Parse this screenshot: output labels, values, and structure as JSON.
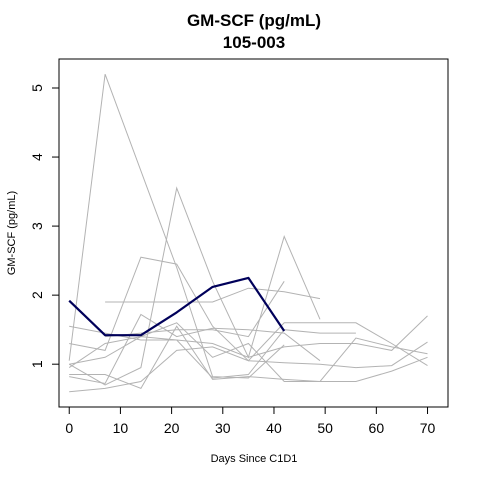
{
  "chart_data": {
    "type": "line",
    "title": "GM-SCF (pg/mL)",
    "subtitle": "105-003",
    "xlabel": "Days Since C1D1",
    "ylabel": "GM-SCF (pg/mL)",
    "xlim": [
      -2,
      74
    ],
    "ylim": [
      0.38,
      5.42
    ],
    "xticks": [
      0,
      10,
      20,
      30,
      40,
      50,
      60,
      70
    ],
    "yticks": [
      1,
      2,
      3,
      4,
      5
    ],
    "background_color": "#b3b3b3",
    "highlight_color": "#00005a",
    "background_series": [
      {
        "x": [
          0,
          7,
          21,
          28,
          35,
          42
        ],
        "y": [
          1.05,
          5.2,
          2.4,
          0.82,
          0.8,
          1.28
        ]
      },
      {
        "x": [
          0,
          7,
          14,
          21,
          28,
          35,
          42,
          49
        ],
        "y": [
          1.0,
          0.7,
          0.95,
          3.55,
          2.2,
          1.1,
          2.85,
          1.65
        ]
      },
      {
        "x": [
          0,
          7,
          14,
          21,
          28,
          35,
          42,
          49
        ],
        "y": [
          0.82,
          0.72,
          1.72,
          1.4,
          1.52,
          1.5,
          1.45,
          1.05
        ]
      },
      {
        "x": [
          0,
          7,
          14,
          21,
          28,
          35,
          42,
          49,
          56,
          63,
          70
        ],
        "y": [
          0.6,
          0.65,
          0.75,
          1.2,
          1.25,
          1.05,
          1.02,
          1.0,
          0.95,
          0.98,
          1.32
        ]
      },
      {
        "x": [
          0,
          7,
          14,
          21,
          28,
          35,
          42,
          49,
          56,
          63,
          70
        ],
        "y": [
          0.85,
          0.85,
          0.65,
          1.55,
          0.78,
          0.82,
          0.78,
          0.75,
          0.75,
          0.9,
          1.1
        ]
      },
      {
        "x": [
          0,
          7,
          14,
          21,
          28,
          35,
          42,
          49,
          56,
          63,
          70
        ],
        "y": [
          1.55,
          1.45,
          1.35,
          1.35,
          1.3,
          1.1,
          1.25,
          1.3,
          1.3,
          1.2,
          1.7
        ]
      },
      {
        "x": [
          0,
          7,
          14,
          21,
          28,
          35,
          42,
          49,
          56,
          63,
          70
        ],
        "y": [
          1.0,
          1.1,
          1.4,
          1.6,
          1.1,
          1.3,
          0.75,
          0.75,
          1.38,
          1.25,
          1.15
        ]
      },
      {
        "x": [
          0,
          7,
          14,
          21,
          28,
          35,
          42,
          49,
          56,
          63,
          70
        ],
        "y": [
          1.3,
          1.2,
          2.55,
          2.45,
          1.55,
          1.05,
          1.6,
          1.6,
          1.6,
          1.3,
          0.98
        ]
      },
      {
        "x": [
          7,
          14,
          21,
          28,
          35,
          42,
          49
        ],
        "y": [
          1.9,
          1.9,
          1.9,
          1.9,
          2.1,
          2.05,
          1.95
        ]
      },
      {
        "x": [
          7,
          14,
          21,
          28,
          35,
          42
        ],
        "y": [
          1.4,
          1.45,
          1.5,
          1.5,
          1.4,
          2.2
        ]
      },
      {
        "x": [
          0,
          7,
          14,
          21,
          28,
          35,
          42,
          49,
          56
        ],
        "y": [
          0.95,
          1.3,
          1.4,
          1.35,
          0.8,
          0.85,
          1.5,
          1.45,
          1.45
        ]
      }
    ],
    "highlight_series": {
      "name": "105-003",
      "x": [
        0,
        7,
        14,
        21,
        28,
        35,
        42
      ],
      "y": [
        1.92,
        1.42,
        1.42,
        1.75,
        2.12,
        2.25,
        1.48
      ]
    }
  }
}
